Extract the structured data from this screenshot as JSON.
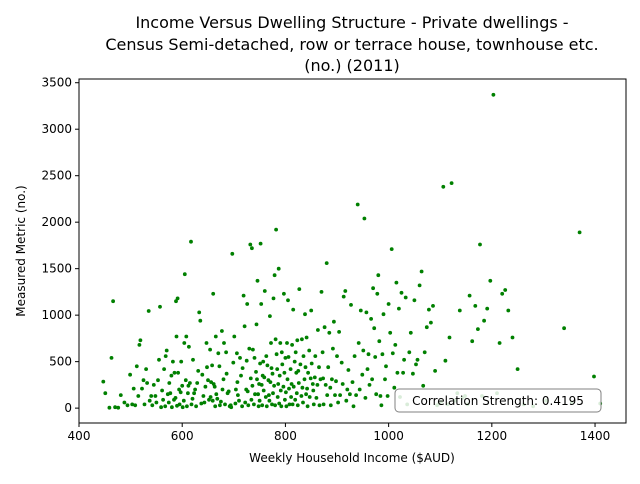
{
  "chart_data": {
    "type": "scatter",
    "title_lines": [
      "Income Versus Dwelling Structure - Private dwellings -",
      "Census Semi-detached, row or terrace house, townhouse etc.",
      "(no.) (2011)"
    ],
    "xlabel": "Weekly Household Income ($AUD)",
    "ylabel": "Measured Metric (no.)",
    "xlim": [
      400,
      1460
    ],
    "ylim": [
      -160,
      3540
    ],
    "xticks": [
      400,
      600,
      800,
      1000,
      1200,
      1400
    ],
    "yticks": [
      0,
      500,
      1000,
      1500,
      2000,
      2500,
      3000,
      3500
    ],
    "grid": false,
    "annotation": "Correlation Strength: 0.4195",
    "point_color": "#008000",
    "points": [
      [
        447,
        285
      ],
      [
        451,
        160
      ],
      [
        459,
        5
      ],
      [
        463,
        540
      ],
      [
        466,
        1150
      ],
      [
        470,
        10
      ],
      [
        476,
        5
      ],
      [
        481,
        140
      ],
      [
        488,
        60
      ],
      [
        494,
        30
      ],
      [
        499,
        360
      ],
      [
        503,
        40
      ],
      [
        506,
        210
      ],
      [
        509,
        30
      ],
      [
        512,
        450
      ],
      [
        515,
        130
      ],
      [
        517,
        680
      ],
      [
        519,
        730
      ],
      [
        522,
        210
      ],
      [
        525,
        300
      ],
      [
        527,
        40
      ],
      [
        530,
        420
      ],
      [
        532,
        270
      ],
      [
        535,
        1045
      ],
      [
        537,
        80
      ],
      [
        540,
        130
      ],
      [
        542,
        30
      ],
      [
        545,
        250
      ],
      [
        548,
        130
      ],
      [
        550,
        60
      ],
      [
        553,
        300
      ],
      [
        555,
        520
      ],
      [
        557,
        1090
      ],
      [
        559,
        10
      ],
      [
        561,
        190
      ],
      [
        563,
        90
      ],
      [
        565,
        420
      ],
      [
        567,
        20
      ],
      [
        568,
        560
      ],
      [
        570,
        620
      ],
      [
        572,
        150
      ],
      [
        574,
        60
      ],
      [
        575,
        270
      ],
      [
        577,
        160
      ],
      [
        579,
        350
      ],
      [
        580,
        10
      ],
      [
        582,
        500
      ],
      [
        584,
        90
      ],
      [
        585,
        380
      ],
      [
        587,
        110
      ],
      [
        588,
        1150
      ],
      [
        589,
        770
      ],
      [
        590,
        25
      ],
      [
        591,
        1180
      ],
      [
        592,
        380
      ],
      [
        594,
        200
      ],
      [
        595,
        40
      ],
      [
        597,
        170
      ],
      [
        598,
        500
      ],
      [
        600,
        240
      ],
      [
        601,
        10
      ],
      [
        603,
        80
      ],
      [
        604,
        700
      ],
      [
        605,
        1440
      ],
      [
        607,
        300
      ],
      [
        608,
        770
      ],
      [
        609,
        20
      ],
      [
        611,
        160
      ],
      [
        612,
        240
      ],
      [
        613,
        660
      ],
      [
        615,
        270
      ],
      [
        617,
        1790
      ],
      [
        618,
        40
      ],
      [
        620,
        100
      ],
      [
        621,
        520
      ],
      [
        623,
        160
      ],
      [
        625,
        200
      ],
      [
        627,
        20
      ],
      [
        629,
        270
      ],
      [
        631,
        400
      ],
      [
        633,
        1030
      ],
      [
        635,
        940
      ],
      [
        637,
        50
      ],
      [
        639,
        360
      ],
      [
        641,
        130
      ],
      [
        643,
        60
      ],
      [
        645,
        230
      ],
      [
        647,
        700
      ],
      [
        648,
        440
      ],
      [
        650,
        300
      ],
      [
        652,
        90
      ],
      [
        654,
        630
      ],
      [
        655,
        120
      ],
      [
        656,
        280
      ],
      [
        658,
        460
      ],
      [
        659,
        80
      ],
      [
        660,
        1230
      ],
      [
        661,
        260
      ],
      [
        663,
        230
      ],
      [
        664,
        20
      ],
      [
        665,
        770
      ],
      [
        666,
        150
      ],
      [
        668,
        100
      ],
      [
        670,
        590
      ],
      [
        672,
        450
      ],
      [
        673,
        30
      ],
      [
        675,
        70
      ],
      [
        677,
        830
      ],
      [
        678,
        200
      ],
      [
        680,
        310
      ],
      [
        681,
        700
      ],
      [
        683,
        40
      ],
      [
        685,
        600
      ],
      [
        686,
        370
      ],
      [
        688,
        160
      ],
      [
        690,
        180
      ],
      [
        692,
        20
      ],
      [
        694,
        30
      ],
      [
        695,
        10
      ],
      [
        697,
        1660
      ],
      [
        699,
        490
      ],
      [
        701,
        770
      ],
      [
        703,
        50
      ],
      [
        704,
        200
      ],
      [
        706,
        590
      ],
      [
        707,
        280
      ],
      [
        708,
        140
      ],
      [
        710,
        80
      ],
      [
        712,
        540
      ],
      [
        714,
        350
      ],
      [
        716,
        20
      ],
      [
        717,
        430
      ],
      [
        719,
        1210
      ],
      [
        721,
        880
      ],
      [
        722,
        60
      ],
      [
        724,
        200
      ],
      [
        725,
        510
      ],
      [
        726,
        1120
      ],
      [
        727,
        180
      ],
      [
        728,
        30
      ],
      [
        730,
        640
      ],
      [
        732,
        1760
      ],
      [
        733,
        320
      ],
      [
        734,
        90
      ],
      [
        735,
        1720
      ],
      [
        736,
        240
      ],
      [
        737,
        630
      ],
      [
        739,
        40
      ],
      [
        740,
        540
      ],
      [
        741,
        150
      ],
      [
        743,
        390
      ],
      [
        744,
        900
      ],
      [
        745,
        310
      ],
      [
        746,
        1370
      ],
      [
        747,
        150
      ],
      [
        748,
        20
      ],
      [
        749,
        260
      ],
      [
        750,
        80
      ],
      [
        751,
        480
      ],
      [
        752,
        1770
      ],
      [
        753,
        1120
      ],
      [
        754,
        250
      ],
      [
        755,
        30
      ],
      [
        756,
        350
      ],
      [
        757,
        500
      ],
      [
        758,
        190
      ],
      [
        759,
        330
      ],
      [
        760,
        1260
      ],
      [
        762,
        120
      ],
      [
        763,
        560
      ],
      [
        764,
        20
      ],
      [
        765,
        460
      ],
      [
        767,
        300
      ],
      [
        768,
        140
      ],
      [
        769,
        80
      ],
      [
        770,
        990
      ],
      [
        771,
        280
      ],
      [
        772,
        700
      ],
      [
        773,
        430
      ],
      [
        774,
        40
      ],
      [
        775,
        370
      ],
      [
        776,
        160
      ],
      [
        777,
        1180
      ],
      [
        778,
        240
      ],
      [
        779,
        1430
      ],
      [
        780,
        30
      ],
      [
        781,
        740
      ],
      [
        782,
        1920
      ],
      [
        783,
        580
      ],
      [
        784,
        420
      ],
      [
        785,
        120
      ],
      [
        786,
        260
      ],
      [
        787,
        1500
      ],
      [
        788,
        50
      ],
      [
        789,
        350
      ],
      [
        790,
        700
      ],
      [
        791,
        190
      ],
      [
        792,
        20
      ],
      [
        793,
        600
      ],
      [
        794,
        470
      ],
      [
        796,
        230
      ],
      [
        797,
        1230
      ],
      [
        798,
        380
      ],
      [
        799,
        90
      ],
      [
        800,
        540
      ],
      [
        801,
        170
      ],
      [
        802,
        20
      ],
      [
        803,
        700
      ],
      [
        804,
        310
      ],
      [
        805,
        1160
      ],
      [
        806,
        550
      ],
      [
        807,
        210
      ],
      [
        808,
        40
      ],
      [
        810,
        420
      ],
      [
        811,
        120
      ],
      [
        812,
        260
      ],
      [
        813,
        680
      ],
      [
        814,
        40
      ],
      [
        815,
        1060
      ],
      [
        816,
        230
      ],
      [
        818,
        500
      ],
      [
        819,
        90
      ],
      [
        820,
        600
      ],
      [
        821,
        380
      ],
      [
        822,
        160
      ],
      [
        823,
        730
      ],
      [
        824,
        30
      ],
      [
        825,
        400
      ],
      [
        826,
        270
      ],
      [
        827,
        1280
      ],
      [
        829,
        470
      ],
      [
        831,
        130
      ],
      [
        832,
        740
      ],
      [
        833,
        220
      ],
      [
        834,
        60
      ],
      [
        835,
        560
      ],
      [
        837,
        310
      ],
      [
        838,
        1010
      ],
      [
        839,
        440
      ],
      [
        840,
        150
      ],
      [
        841,
        760
      ],
      [
        842,
        210
      ],
      [
        843,
        20
      ],
      [
        844,
        380
      ],
      [
        846,
        620
      ],
      [
        847,
        120
      ],
      [
        849,
        320
      ],
      [
        850,
        1050
      ],
      [
        851,
        480
      ],
      [
        853,
        260
      ],
      [
        854,
        190
      ],
      [
        855,
        40
      ],
      [
        857,
        330
      ],
      [
        858,
        560
      ],
      [
        860,
        110
      ],
      [
        862,
        250
      ],
      [
        863,
        840
      ],
      [
        865,
        440
      ],
      [
        866,
        30
      ],
      [
        868,
        310
      ],
      [
        870,
        1250
      ],
      [
        872,
        600
      ],
      [
        873,
        320
      ],
      [
        874,
        40
      ],
      [
        876,
        870
      ],
      [
        878,
        250
      ],
      [
        880,
        1560
      ],
      [
        881,
        140
      ],
      [
        883,
        440
      ],
      [
        885,
        810
      ],
      [
        887,
        220
      ],
      [
        888,
        30
      ],
      [
        890,
        310
      ],
      [
        892,
        640
      ],
      [
        894,
        930
      ],
      [
        896,
        140
      ],
      [
        898,
        290
      ],
      [
        900,
        560
      ],
      [
        902,
        60
      ],
      [
        904,
        820
      ],
      [
        906,
        140
      ],
      [
        909,
        490
      ],
      [
        911,
        260
      ],
      [
        913,
        1200
      ],
      [
        916,
        1260
      ],
      [
        918,
        80
      ],
      [
        920,
        200
      ],
      [
        922,
        410
      ],
      [
        925,
        150
      ],
      [
        927,
        1110
      ],
      [
        930,
        280
      ],
      [
        932,
        20
      ],
      [
        934,
        560
      ],
      [
        937,
        140
      ],
      [
        940,
        2190
      ],
      [
        942,
        700
      ],
      [
        944,
        200
      ],
      [
        946,
        1050
      ],
      [
        949,
        360
      ],
      [
        951,
        620
      ],
      [
        953,
        2040
      ],
      [
        955,
        110
      ],
      [
        957,
        1030
      ],
      [
        959,
        420
      ],
      [
        961,
        580
      ],
      [
        963,
        250
      ],
      [
        966,
        960
      ],
      [
        968,
        310
      ],
      [
        970,
        1290
      ],
      [
        972,
        860
      ],
      [
        974,
        550
      ],
      [
        976,
        150
      ],
      [
        978,
        1230
      ],
      [
        980,
        1430
      ],
      [
        982,
        720
      ],
      [
        984,
        130
      ],
      [
        986,
        30
      ],
      [
        988,
        580
      ],
      [
        990,
        1010
      ],
      [
        993,
        310
      ],
      [
        995,
        450
      ],
      [
        998,
        130
      ],
      [
        1000,
        1120
      ],
      [
        1003,
        810
      ],
      [
        1006,
        1710
      ],
      [
        1008,
        590
      ],
      [
        1011,
        220
      ],
      [
        1013,
        680
      ],
      [
        1015,
        1350
      ],
      [
        1017,
        380
      ],
      [
        1020,
        1070
      ],
      [
        1022,
        120
      ],
      [
        1025,
        1240
      ],
      [
        1028,
        380
      ],
      [
        1030,
        520
      ],
      [
        1033,
        1190
      ],
      [
        1036,
        40
      ],
      [
        1040,
        600
      ],
      [
        1043,
        810
      ],
      [
        1047,
        370
      ],
      [
        1050,
        1160
      ],
      [
        1053,
        470
      ],
      [
        1056,
        520
      ],
      [
        1060,
        1320
      ],
      [
        1064,
        1470
      ],
      [
        1067,
        240
      ],
      [
        1070,
        600
      ],
      [
        1074,
        870
      ],
      [
        1078,
        1060
      ],
      [
        1082,
        920
      ],
      [
        1086,
        1100
      ],
      [
        1090,
        400
      ],
      [
        1094,
        30
      ],
      [
        1098,
        50
      ],
      [
        1102,
        70
      ],
      [
        1106,
        2380
      ],
      [
        1110,
        510
      ],
      [
        1114,
        40
      ],
      [
        1118,
        760
      ],
      [
        1122,
        2420
      ],
      [
        1128,
        80
      ],
      [
        1133,
        160
      ],
      [
        1138,
        1050
      ],
      [
        1143,
        110
      ],
      [
        1148,
        130
      ],
      [
        1153,
        40
      ],
      [
        1157,
        1210
      ],
      [
        1162,
        720
      ],
      [
        1168,
        1100
      ],
      [
        1173,
        850
      ],
      [
        1177,
        1760
      ],
      [
        1181,
        130
      ],
      [
        1185,
        940
      ],
      [
        1191,
        1070
      ],
      [
        1197,
        1370
      ],
      [
        1203,
        3370
      ],
      [
        1210,
        160
      ],
      [
        1215,
        700
      ],
      [
        1220,
        1230
      ],
      [
        1226,
        1270
      ],
      [
        1232,
        1050
      ],
      [
        1240,
        760
      ],
      [
        1250,
        420
      ],
      [
        1262,
        40
      ],
      [
        1280,
        20
      ],
      [
        1305,
        80
      ],
      [
        1340,
        860
      ],
      [
        1355,
        60
      ],
      [
        1370,
        1890
      ],
      [
        1398,
        340
      ],
      [
        1410,
        50
      ]
    ]
  }
}
